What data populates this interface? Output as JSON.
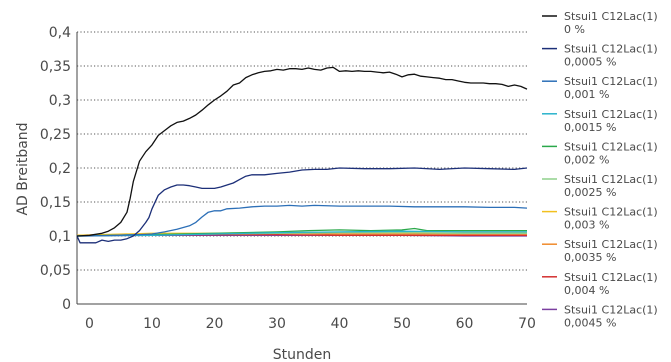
{
  "chart_data": {
    "type": "line",
    "title": "",
    "xlabel": "Stunden",
    "ylabel": "AD Breitband",
    "xlim": [
      -2,
      70
    ],
    "ylim": [
      0,
      0.4
    ],
    "x_ticks": [
      0,
      10,
      20,
      30,
      40,
      50,
      60,
      70
    ],
    "x_tick_labels": [
      "0",
      "10",
      "20",
      "30",
      "40",
      "50",
      "60",
      "70"
    ],
    "y_ticks": [
      0,
      0.05,
      0.1,
      0.15,
      0.2,
      0.25,
      0.3,
      0.35,
      0.4
    ],
    "y_tick_labels": [
      "0",
      "0,05",
      "0,1",
      "0,15",
      "0,2",
      "0,25",
      "0,3",
      "0,35",
      "0,4"
    ],
    "grid": "horizontal dotted",
    "legend_position": "right",
    "series": [
      {
        "name_line1": "Stsui1 C12Lac(1)",
        "name_line2": "0 %",
        "color": "#111111",
        "points": [
          [
            -2,
            0.1
          ],
          [
            0,
            0.101
          ],
          [
            2,
            0.104
          ],
          [
            3,
            0.107
          ],
          [
            4,
            0.112
          ],
          [
            5,
            0.12
          ],
          [
            6,
            0.135
          ],
          [
            6.5,
            0.155
          ],
          [
            7,
            0.18
          ],
          [
            8,
            0.21
          ],
          [
            9,
            0.224
          ],
          [
            10,
            0.234
          ],
          [
            11,
            0.248
          ],
          [
            12,
            0.255
          ],
          [
            13,
            0.262
          ],
          [
            14,
            0.267
          ],
          [
            15,
            0.269
          ],
          [
            16,
            0.273
          ],
          [
            17,
            0.278
          ],
          [
            18,
            0.285
          ],
          [
            19,
            0.293
          ],
          [
            20,
            0.3
          ],
          [
            21,
            0.306
          ],
          [
            22,
            0.313
          ],
          [
            23,
            0.322
          ],
          [
            24,
            0.325
          ],
          [
            25,
            0.333
          ],
          [
            26,
            0.337
          ],
          [
            27,
            0.34
          ],
          [
            28,
            0.342
          ],
          [
            29,
            0.343
          ],
          [
            30,
            0.345
          ],
          [
            31,
            0.344
          ],
          [
            32,
            0.346
          ],
          [
            33,
            0.346
          ],
          [
            34,
            0.345
          ],
          [
            35,
            0.347
          ],
          [
            36,
            0.345
          ],
          [
            37,
            0.344
          ],
          [
            38,
            0.347
          ],
          [
            39,
            0.348
          ],
          [
            40,
            0.342
          ],
          [
            41,
            0.343
          ],
          [
            42,
            0.342
          ],
          [
            43,
            0.343
          ],
          [
            44,
            0.342
          ],
          [
            45,
            0.342
          ],
          [
            46,
            0.341
          ],
          [
            47,
            0.34
          ],
          [
            48,
            0.341
          ],
          [
            49,
            0.338
          ],
          [
            50,
            0.334
          ],
          [
            51,
            0.337
          ],
          [
            52,
            0.338
          ],
          [
            53,
            0.335
          ],
          [
            54,
            0.334
          ],
          [
            55,
            0.333
          ],
          [
            56,
            0.332
          ],
          [
            57,
            0.33
          ],
          [
            58,
            0.33
          ],
          [
            59,
            0.328
          ],
          [
            60,
            0.326
          ],
          [
            61,
            0.325
          ],
          [
            62,
            0.325
          ],
          [
            63,
            0.325
          ],
          [
            64,
            0.324
          ],
          [
            65,
            0.324
          ],
          [
            66,
            0.323
          ],
          [
            67,
            0.32
          ],
          [
            68,
            0.322
          ],
          [
            69,
            0.32
          ],
          [
            70,
            0.316
          ]
        ]
      },
      {
        "name_line1": "Stsui1 C12Lac(1)",
        "name_line2": "0,0005 %",
        "color": "#1c2f78",
        "points": [
          [
            -2,
            0.1
          ],
          [
            -1.5,
            0.09
          ],
          [
            0,
            0.09
          ],
          [
            1,
            0.09
          ],
          [
            2,
            0.094
          ],
          [
            3,
            0.092
          ],
          [
            4,
            0.094
          ],
          [
            5,
            0.094
          ],
          [
            6,
            0.096
          ],
          [
            7,
            0.1
          ],
          [
            8,
            0.108
          ],
          [
            9,
            0.12
          ],
          [
            9.5,
            0.127
          ],
          [
            10,
            0.14
          ],
          [
            11,
            0.16
          ],
          [
            12,
            0.168
          ],
          [
            13,
            0.172
          ],
          [
            14,
            0.175
          ],
          [
            15,
            0.175
          ],
          [
            16,
            0.174
          ],
          [
            17,
            0.172
          ],
          [
            18,
            0.17
          ],
          [
            19,
            0.17
          ],
          [
            20,
            0.17
          ],
          [
            21,
            0.172
          ],
          [
            22,
            0.175
          ],
          [
            23,
            0.178
          ],
          [
            24,
            0.183
          ],
          [
            25,
            0.188
          ],
          [
            26,
            0.19
          ],
          [
            28,
            0.19
          ],
          [
            30,
            0.192
          ],
          [
            32,
            0.194
          ],
          [
            34,
            0.197
          ],
          [
            36,
            0.198
          ],
          [
            38,
            0.198
          ],
          [
            40,
            0.2
          ],
          [
            44,
            0.199
          ],
          [
            48,
            0.199
          ],
          [
            52,
            0.2
          ],
          [
            56,
            0.198
          ],
          [
            60,
            0.2
          ],
          [
            64,
            0.199
          ],
          [
            68,
            0.198
          ],
          [
            70,
            0.2
          ]
        ]
      },
      {
        "name_line1": "Stsui1 C12Lac(1)",
        "name_line2": "0,001 %",
        "color": "#2c6fb7",
        "points": [
          [
            -2,
            0.1
          ],
          [
            0,
            0.1
          ],
          [
            4,
            0.101
          ],
          [
            8,
            0.102
          ],
          [
            10,
            0.103
          ],
          [
            12,
            0.106
          ],
          [
            14,
            0.11
          ],
          [
            16,
            0.115
          ],
          [
            17,
            0.12
          ],
          [
            18,
            0.128
          ],
          [
            19,
            0.135
          ],
          [
            20,
            0.137
          ],
          [
            21,
            0.137
          ],
          [
            22,
            0.14
          ],
          [
            24,
            0.141
          ],
          [
            26,
            0.143
          ],
          [
            28,
            0.144
          ],
          [
            30,
            0.144
          ],
          [
            32,
            0.145
          ],
          [
            34,
            0.144
          ],
          [
            36,
            0.145
          ],
          [
            40,
            0.144
          ],
          [
            44,
            0.144
          ],
          [
            48,
            0.144
          ],
          [
            52,
            0.143
          ],
          [
            56,
            0.143
          ],
          [
            60,
            0.143
          ],
          [
            64,
            0.142
          ],
          [
            68,
            0.142
          ],
          [
            70,
            0.141
          ]
        ]
      },
      {
        "name_line1": "Stsui1 C12Lac(1)",
        "name_line2": "0,0015 %",
        "color": "#2ab3cc",
        "points": [
          [
            -2,
            0.1
          ],
          [
            10,
            0.101
          ],
          [
            20,
            0.103
          ],
          [
            30,
            0.105
          ],
          [
            40,
            0.106
          ],
          [
            50,
            0.107
          ],
          [
            60,
            0.106
          ],
          [
            70,
            0.106
          ]
        ]
      },
      {
        "name_line1": "Stsui1 C12Lac(1)",
        "name_line2": "0,002 %",
        "color": "#2aa84a",
        "points": [
          [
            -2,
            0.1
          ],
          [
            10,
            0.102
          ],
          [
            20,
            0.104
          ],
          [
            30,
            0.106
          ],
          [
            35,
            0.108
          ],
          [
            40,
            0.109
          ],
          [
            45,
            0.108
          ],
          [
            50,
            0.109
          ],
          [
            52,
            0.111
          ],
          [
            54,
            0.108
          ],
          [
            60,
            0.108
          ],
          [
            70,
            0.108
          ]
        ]
      },
      {
        "name_line1": "Stsui1 C12Lac(1)",
        "name_line2": "0,0025 %",
        "color": "#8fd08a",
        "points": [
          [
            -2,
            0.1
          ],
          [
            10,
            0.102
          ],
          [
            20,
            0.103
          ],
          [
            30,
            0.104
          ],
          [
            40,
            0.105
          ],
          [
            50,
            0.105
          ],
          [
            60,
            0.104
          ],
          [
            70,
            0.104
          ]
        ]
      },
      {
        "name_line1": "Stsui1 C12Lac(1)",
        "name_line2": "0,003 %",
        "color": "#f2c01f",
        "points": [
          [
            -2,
            0.101
          ],
          [
            10,
            0.104
          ],
          [
            20,
            0.104
          ],
          [
            30,
            0.105
          ],
          [
            40,
            0.105
          ],
          [
            50,
            0.105
          ],
          [
            60,
            0.104
          ],
          [
            70,
            0.104
          ]
        ]
      },
      {
        "name_line1": "Stsui1 C12Lac(1)",
        "name_line2": "0,0035 %",
        "color": "#f08a2c",
        "points": [
          [
            -2,
            0.101
          ],
          [
            10,
            0.103
          ],
          [
            20,
            0.103
          ],
          [
            30,
            0.104
          ],
          [
            40,
            0.103
          ],
          [
            50,
            0.103
          ],
          [
            60,
            0.103
          ],
          [
            70,
            0.103
          ]
        ]
      },
      {
        "name_line1": "Stsui1 C12Lac(1)",
        "name_line2": "0,004 %",
        "color": "#d32f2f",
        "points": [
          [
            -2,
            0.101
          ],
          [
            10,
            0.102
          ],
          [
            20,
            0.102
          ],
          [
            30,
            0.102
          ],
          [
            40,
            0.101
          ],
          [
            50,
            0.101
          ],
          [
            60,
            0.101
          ],
          [
            70,
            0.101
          ]
        ]
      },
      {
        "name_line1": "Stsui1 C12Lac(1)",
        "name_line2": "0,0045 %",
        "color": "#7b3fa0",
        "points": [
          [
            -2,
            0.1
          ],
          [
            10,
            0.101
          ],
          [
            20,
            0.101
          ],
          [
            30,
            0.101
          ],
          [
            40,
            0.101
          ],
          [
            50,
            0.101
          ],
          [
            60,
            0.1
          ],
          [
            70,
            0.1
          ]
        ]
      }
    ]
  }
}
